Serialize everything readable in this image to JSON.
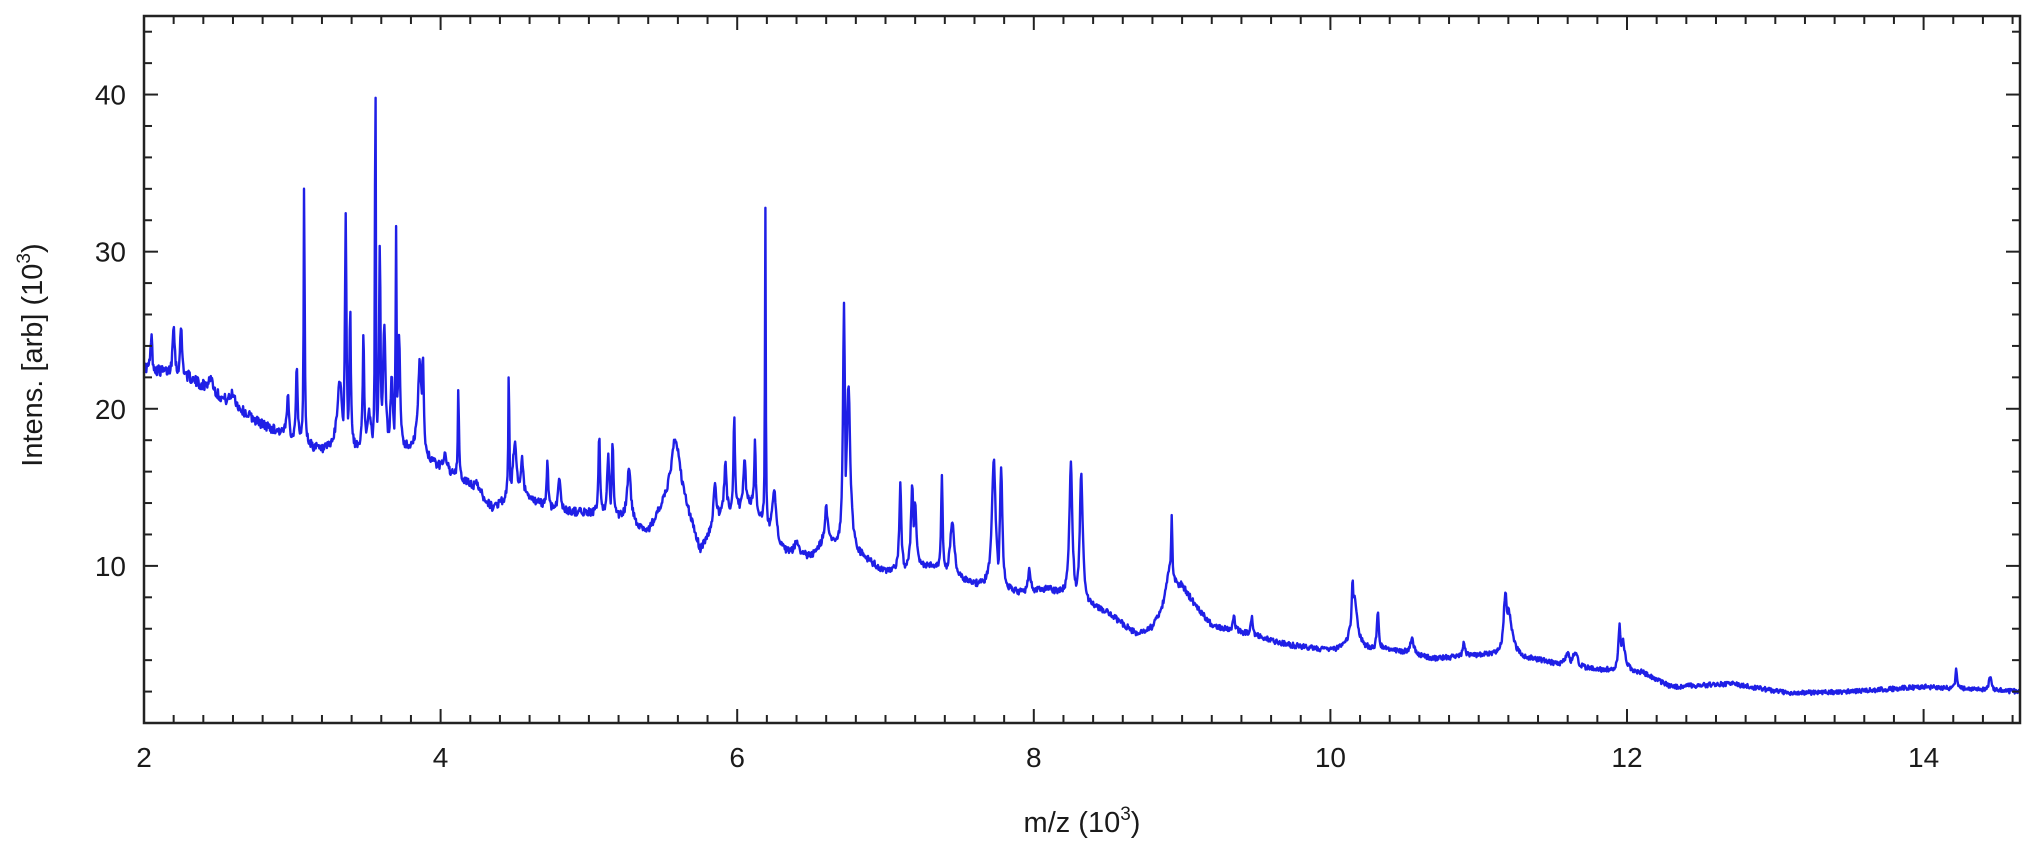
{
  "chart_data": {
    "type": "line",
    "title": "",
    "xlabel": "m/z (10^3)",
    "ylabel": "Intens. [arb] (10^3)",
    "xlabel_text": "m/z (10",
    "xlabel_sup": "3",
    "xlabel_close": ")",
    "ylabel_text": "Intens. [arb] (10",
    "ylabel_sup": "3",
    "ylabel_close": ")",
    "xlim": [
      2.0,
      14.65
    ],
    "ylim": [
      0,
      45
    ],
    "x_ticks": [
      2,
      4,
      6,
      8,
      10,
      12,
      14
    ],
    "x_tick_labels": [
      "2",
      "4",
      "6",
      "8",
      "10",
      "12",
      "14"
    ],
    "y_ticks": [
      10,
      20,
      30,
      40
    ],
    "y_tick_labels": [
      "10",
      "20",
      "30",
      "40"
    ],
    "x_minor_step": 0.2,
    "y_minor_step": 2,
    "grid": false,
    "line_color": "#1f1fe6",
    "series": [
      {
        "baseline": [
          [
            2.0,
            22.6
          ],
          [
            2.3,
            22.0
          ],
          [
            2.5,
            20.8
          ],
          [
            2.8,
            19.0
          ],
          [
            3.0,
            18.2
          ],
          [
            3.2,
            17.3
          ],
          [
            3.5,
            17.6
          ],
          [
            3.8,
            17.5
          ],
          [
            4.0,
            16.2
          ],
          [
            4.2,
            15.2
          ],
          [
            4.35,
            13.7
          ],
          [
            4.5,
            14.6
          ],
          [
            4.8,
            13.5
          ],
          [
            5.0,
            13.4
          ],
          [
            5.2,
            13.1
          ],
          [
            5.4,
            12.2
          ],
          [
            5.6,
            15.5
          ],
          [
            5.75,
            11.0
          ],
          [
            5.9,
            13.5
          ],
          [
            6.1,
            14.0
          ],
          [
            6.3,
            11.0
          ],
          [
            6.5,
            10.6
          ],
          [
            6.6,
            11.8
          ],
          [
            6.9,
            10.2
          ],
          [
            7.0,
            9.6
          ],
          [
            7.3,
            10.0
          ],
          [
            7.6,
            8.8
          ],
          [
            7.9,
            8.3
          ],
          [
            8.1,
            8.5
          ],
          [
            8.5,
            7.0
          ],
          [
            8.7,
            5.6
          ],
          [
            8.8,
            6.0
          ],
          [
            9.0,
            8.5
          ],
          [
            9.2,
            6.2
          ],
          [
            9.4,
            5.8
          ],
          [
            9.7,
            5.0
          ],
          [
            10.0,
            4.6
          ],
          [
            10.4,
            4.7
          ],
          [
            10.7,
            4.1
          ],
          [
            11.0,
            4.3
          ],
          [
            11.4,
            4.0
          ],
          [
            11.6,
            3.6
          ],
          [
            11.8,
            3.4
          ],
          [
            12.1,
            3.2
          ],
          [
            12.3,
            2.3
          ],
          [
            12.7,
            2.5
          ],
          [
            13.1,
            1.9
          ],
          [
            13.5,
            2.0
          ],
          [
            14.0,
            2.3
          ],
          [
            14.65,
            2.0
          ]
        ],
        "peaks": [
          [
            2.05,
            24.8,
            0.006
          ],
          [
            2.2,
            25.6,
            0.008
          ],
          [
            2.25,
            25.2,
            0.008
          ],
          [
            2.45,
            22.0,
            0.02
          ],
          [
            2.6,
            21.0,
            0.02
          ],
          [
            2.97,
            20.8,
            0.008
          ],
          [
            3.03,
            23.2,
            0.006
          ],
          [
            3.08,
            34.6,
            0.004
          ],
          [
            3.32,
            21.8,
            0.02
          ],
          [
            3.36,
            32.6,
            0.006
          ],
          [
            3.39,
            26.5,
            0.006
          ],
          [
            3.48,
            25.0,
            0.006
          ],
          [
            3.52,
            19.8,
            0.015
          ],
          [
            3.56,
            45.0,
            0.003
          ],
          [
            3.59,
            30.8,
            0.006
          ],
          [
            3.62,
            25.6,
            0.01
          ],
          [
            3.67,
            22.0,
            0.01
          ],
          [
            3.7,
            31.6,
            0.004
          ],
          [
            3.72,
            25.0,
            0.008
          ],
          [
            3.86,
            23.0,
            0.015
          ],
          [
            3.88,
            23.6,
            0.008
          ],
          [
            4.03,
            17.2,
            0.015
          ],
          [
            4.12,
            21.8,
            0.004
          ],
          [
            4.25,
            15.2,
            0.02
          ],
          [
            4.46,
            22.6,
            0.004
          ],
          [
            4.5,
            17.8,
            0.015
          ],
          [
            4.55,
            16.8,
            0.01
          ],
          [
            4.72,
            16.8,
            0.006
          ],
          [
            4.8,
            15.6,
            0.01
          ],
          [
            5.07,
            18.5,
            0.006
          ],
          [
            5.13,
            17.0,
            0.01
          ],
          [
            5.16,
            18.0,
            0.006
          ],
          [
            5.27,
            16.2,
            0.015
          ],
          [
            5.58,
            18.0,
            0.03
          ],
          [
            5.85,
            15.5,
            0.01
          ],
          [
            5.92,
            16.8,
            0.008
          ],
          [
            5.98,
            19.7,
            0.006
          ],
          [
            6.05,
            17.0,
            0.008
          ],
          [
            6.12,
            18.0,
            0.006
          ],
          [
            6.19,
            33.1,
            0.003
          ],
          [
            6.25,
            15.0,
            0.015
          ],
          [
            6.4,
            11.6,
            0.015
          ],
          [
            6.6,
            13.7,
            0.01
          ],
          [
            6.72,
            26.7,
            0.008
          ],
          [
            6.75,
            21.5,
            0.015
          ],
          [
            7.1,
            15.2,
            0.008
          ],
          [
            7.18,
            15.0,
            0.01
          ],
          [
            7.2,
            14.2,
            0.01
          ],
          [
            7.38,
            15.8,
            0.006
          ],
          [
            7.45,
            13.0,
            0.015
          ],
          [
            7.73,
            16.9,
            0.015
          ],
          [
            7.78,
            16.2,
            0.01
          ],
          [
            7.97,
            9.8,
            0.01
          ],
          [
            8.25,
            16.7,
            0.012
          ],
          [
            8.32,
            15.8,
            0.012
          ],
          [
            8.93,
            13.3,
            0.006
          ],
          [
            8.92,
            10.2,
            0.03
          ],
          [
            9.35,
            6.8,
            0.008
          ],
          [
            9.47,
            6.8,
            0.008
          ],
          [
            10.15,
            9.2,
            0.01
          ],
          [
            10.16,
            8.0,
            0.025
          ],
          [
            10.32,
            7.0,
            0.008
          ],
          [
            10.55,
            5.4,
            0.015
          ],
          [
            10.9,
            5.1,
            0.01
          ],
          [
            11.18,
            8.3,
            0.015
          ],
          [
            11.2,
            7.2,
            0.03
          ],
          [
            11.6,
            4.4,
            0.02
          ],
          [
            11.65,
            4.5,
            0.02
          ],
          [
            11.95,
            6.2,
            0.01
          ],
          [
            11.97,
            5.3,
            0.02
          ],
          [
            14.22,
            3.4,
            0.006
          ],
          [
            14.45,
            3.0,
            0.01
          ]
        ]
      }
    ]
  }
}
